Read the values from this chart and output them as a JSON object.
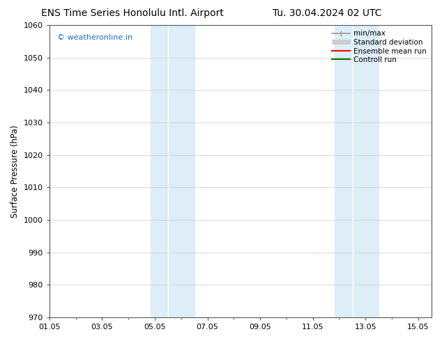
{
  "title_left": "ENS Time Series Honolulu Intl. Airport",
  "title_right": "Tu. 30.04.2024 02 UTC",
  "ylabel": "Surface Pressure (hPa)",
  "ylim": [
    970,
    1060
  ],
  "yticks": [
    970,
    980,
    990,
    1000,
    1010,
    1020,
    1030,
    1040,
    1050,
    1060
  ],
  "xlim_days": [
    0.0,
    14.5
  ],
  "xtick_labels": [
    "01.05",
    "03.05",
    "05.05",
    "07.05",
    "09.05",
    "11.05",
    "13.05",
    "15.05"
  ],
  "xtick_positions": [
    0,
    2,
    4,
    6,
    8,
    10,
    12,
    14
  ],
  "shaded_bands": [
    {
      "xmin": 3.83,
      "xmax": 4.5,
      "color": "#ddeef8",
      "alpha": 1.0
    },
    {
      "xmin": 4.5,
      "xmax": 5.5,
      "color": "#ddeef8",
      "alpha": 1.0
    },
    {
      "xmin": 10.83,
      "xmax": 11.5,
      "color": "#ddeef8",
      "alpha": 1.0
    },
    {
      "xmin": 11.5,
      "xmax": 12.5,
      "color": "#ddeef8",
      "alpha": 1.0
    }
  ],
  "band_dividers": [
    4.5,
    11.5
  ],
  "legend_entries": [
    {
      "label": "min/max",
      "color": "#999999",
      "lw": 1.2,
      "style": "solid"
    },
    {
      "label": "Standard deviation",
      "color": "#cccccc",
      "lw": 5,
      "style": "solid"
    },
    {
      "label": "Ensemble mean run",
      "color": "#ff0000",
      "lw": 1.5,
      "style": "solid"
    },
    {
      "label": "Controll run",
      "color": "#007700",
      "lw": 1.5,
      "style": "solid"
    }
  ],
  "watermark": "© weatheronline.in",
  "watermark_color": "#1a6eb5",
  "background_color": "#ffffff",
  "plot_bg_color": "#ffffff",
  "spine_color": "#555555",
  "tick_color": "#333333",
  "title_fontsize": 10,
  "tick_fontsize": 8,
  "ylabel_fontsize": 8.5,
  "legend_fontsize": 7.5
}
